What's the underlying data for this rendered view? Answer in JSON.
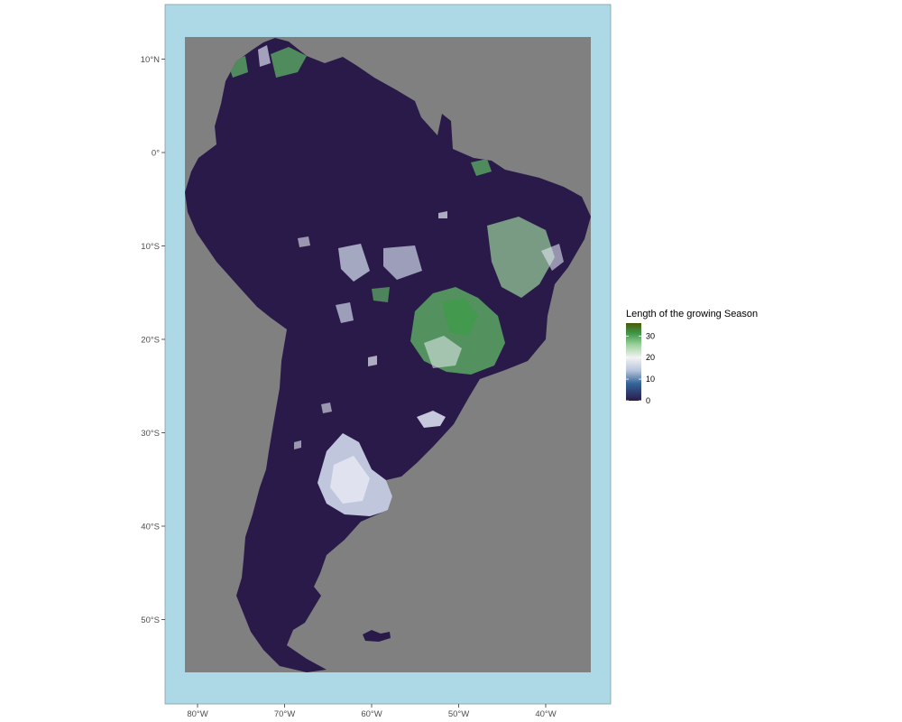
{
  "map": {
    "colors": {
      "sea": "#add8e6",
      "raster_background": "#808080",
      "land_low": "#2a1a4a",
      "panel_border": "#7f9fa8"
    },
    "lat_ticks": [
      {
        "value": 10,
        "label": "10°N"
      },
      {
        "value": 0,
        "label": "0°"
      },
      {
        "value": -10,
        "label": "10°S"
      },
      {
        "value": -20,
        "label": "20°S"
      },
      {
        "value": -30,
        "label": "30°S"
      },
      {
        "value": -40,
        "label": "40°S"
      },
      {
        "value": -50,
        "label": "50°S"
      }
    ],
    "lon_ticks": [
      {
        "value": -80,
        "label": "80°W"
      },
      {
        "value": -70,
        "label": "70°W"
      },
      {
        "value": -60,
        "label": "60°W"
      },
      {
        "value": -50,
        "label": "50°W"
      },
      {
        "value": -40,
        "label": "40°W"
      }
    ],
    "legend": {
      "title": "Length of the growing Season",
      "range": [
        0,
        36
      ],
      "breaks": [
        {
          "value": 0,
          "label": "0"
        },
        {
          "value": 10,
          "label": "10"
        },
        {
          "value": 20,
          "label": "20"
        },
        {
          "value": 30,
          "label": "30"
        }
      ],
      "color_stops": [
        {
          "value": 0,
          "color": "#2a1a4a"
        },
        {
          "value": 8,
          "color": "#34659a"
        },
        {
          "value": 14,
          "color": "#b8c4dc"
        },
        {
          "value": 20,
          "color": "#f2f2f2"
        },
        {
          "value": 26,
          "color": "#9bd19b"
        },
        {
          "value": 31,
          "color": "#3e9b4a"
        },
        {
          "value": 36,
          "color": "#4a5a0a"
        }
      ]
    }
  }
}
